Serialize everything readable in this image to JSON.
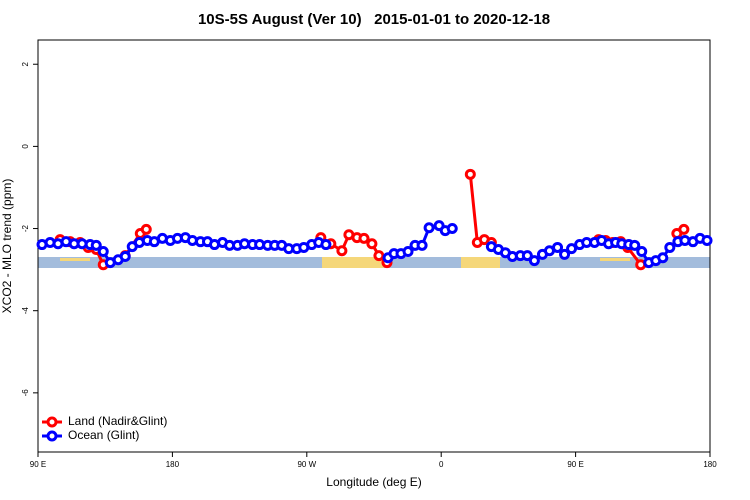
{
  "chart_data": {
    "type": "line",
    "title": "10S-5S August (Ver 10)   2015-01-01 to 2020-12-18",
    "x_label": "Longitude (deg E)",
    "y_label": "XCO2 - MLO trend (ppm)",
    "xlim": [
      90,
      540
    ],
    "ylim": [
      -7.44,
      2.59
    ],
    "xticks": [
      {
        "value": 90,
        "label": "90 E"
      },
      180,
      {
        "value": 270,
        "label": "90 W"
      },
      {
        "value": 360,
        "label": "0"
      },
      {
        "value": 450,
        "label": "90 E"
      },
      {
        "value": 540,
        "label": "180"
      }
    ],
    "yticks": [
      2,
      0,
      -2,
      -4,
      -6
    ],
    "legend": "bottom-left",
    "series": [
      {
        "name": "Land (Nadir&Glint)",
        "color": "#ff0000",
        "x": [
          104.8,
          111.5,
          118.2,
          123.6,
          129.0,
          133.7,
          148.4,
          158.5,
          162.5,
          null,
          279.4,
          286.1,
          293.5,
          298.2,
          303.6,
          308.3,
          313.6,
          318.3,
          323.7,
          null,
          379.5,
          384.2,
          388.9,
          393.6,
          null,
          465.4,
          470.1,
          474.8,
          480.2,
          484.9,
          493.6,
          null,
          517.8,
          522.5
        ],
        "values": [
          -2.27,
          -2.32,
          -2.34,
          -2.46,
          -2.51,
          -2.88,
          -2.66,
          -2.12,
          -2.02,
          null,
          -2.22,
          -2.37,
          -2.54,
          -2.15,
          -2.22,
          -2.24,
          -2.37,
          -2.66,
          -2.83,
          null,
          -0.68,
          -2.34,
          -2.27,
          -2.34,
          null,
          -2.27,
          -2.29,
          -2.34,
          -2.32,
          -2.46,
          -2.88,
          null,
          -2.12,
          -2.02
        ]
      },
      {
        "name": "Ocean (Glint)",
        "color": "#0000ff",
        "x": [
          92.7,
          98.1,
          103.4,
          108.8,
          114.2,
          119.5,
          124.9,
          129.0,
          133.7,
          138.4,
          143.7,
          148.4,
          153.1,
          157.9,
          163.2,
          167.9,
          173.3,
          178.6,
          183.4,
          188.7,
          193.4,
          198.8,
          203.5,
          208.2,
          213.6,
          218.3,
          223.6,
          228.3,
          233.7,
          238.4,
          243.8,
          248.5,
          253.2,
          257.9,
          263.3,
          268.0,
          273.3,
          278.0,
          282.8,
          null,
          324.4,
          328.4,
          333.1,
          337.8,
          342.5,
          347.2,
          351.9,
          358.6,
          362.7,
          367.4,
          null,
          393.6,
          398.3,
          403.0,
          407.7,
          413.0,
          417.7,
          422.4,
          427.8,
          432.5,
          437.9,
          442.6,
          447.3,
          452.7,
          457.4,
          462.7,
          467.4,
          472.1,
          476.8,
          480.9,
          485.6,
          489.6,
          494.3,
          499.0,
          503.7,
          508.4,
          513.1,
          518.5,
          523.2,
          528.6,
          533.3,
          538.0
        ],
        "values": [
          -2.39,
          -2.34,
          -2.37,
          -2.32,
          -2.37,
          -2.37,
          -2.39,
          -2.41,
          -2.56,
          -2.83,
          -2.76,
          -2.68,
          -2.44,
          -2.34,
          -2.29,
          -2.32,
          -2.24,
          -2.29,
          -2.24,
          -2.22,
          -2.29,
          -2.32,
          -2.32,
          -2.39,
          -2.34,
          -2.41,
          -2.41,
          -2.37,
          -2.39,
          -2.39,
          -2.41,
          -2.41,
          -2.41,
          -2.49,
          -2.49,
          -2.46,
          -2.39,
          -2.34,
          -2.39,
          null,
          -2.71,
          -2.61,
          -2.61,
          -2.56,
          -2.41,
          -2.41,
          -1.98,
          -1.93,
          -2.05,
          -2.0,
          null,
          -2.44,
          -2.51,
          -2.59,
          -2.68,
          -2.66,
          -2.66,
          -2.78,
          -2.63,
          -2.54,
          -2.46,
          -2.63,
          -2.49,
          -2.39,
          -2.34,
          -2.34,
          -2.29,
          -2.37,
          -2.34,
          -2.37,
          -2.39,
          -2.41,
          -2.56,
          -2.83,
          -2.78,
          -2.71,
          -2.46,
          -2.32,
          -2.29,
          -2.32,
          -2.24,
          -2.29
        ]
      }
    ]
  }
}
